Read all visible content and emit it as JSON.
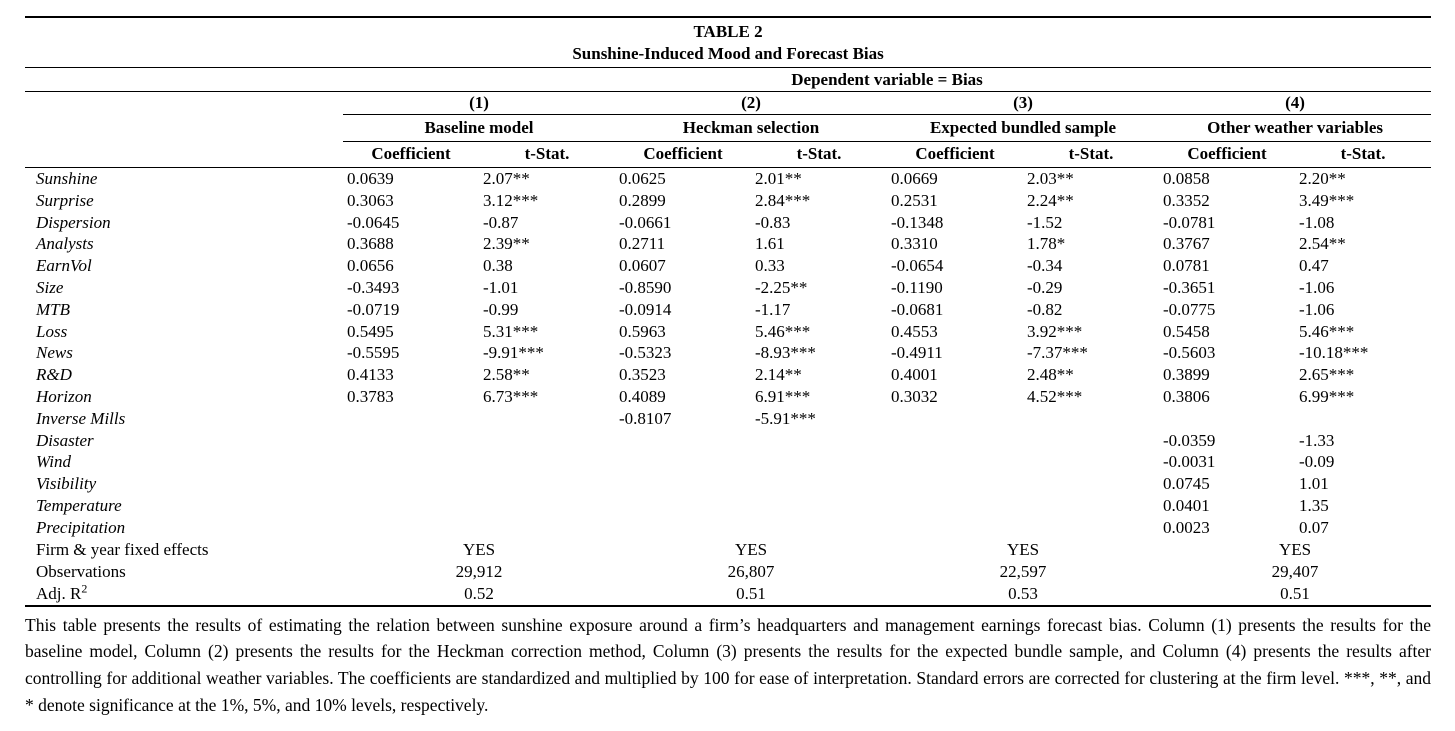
{
  "page": {
    "title": "TABLE 2",
    "subtitle": "Sunshine-Induced Mood and Forecast Bias",
    "dependent_variable_header": "Dependent variable = Bias",
    "column_groups": [
      {
        "number": "(1)",
        "name": "Baseline model"
      },
      {
        "number": "(2)",
        "name": "Heckman selection"
      },
      {
        "number": "(3)",
        "name": "Expected bundled sample"
      },
      {
        "number": "(4)",
        "name": "Other weather variables"
      }
    ],
    "subcolumn_headers": {
      "coefficient": "Coefficient",
      "t_stat": "t-Stat."
    },
    "variable_rows": [
      {
        "label": "Sunshine",
        "cells": [
          "0.0639",
          "2.07**",
          "0.0625",
          "2.01**",
          "0.0669",
          "2.03**",
          "0.0858",
          "2.20**"
        ]
      },
      {
        "label": "Surprise",
        "cells": [
          "0.3063",
          "3.12***",
          "0.2899",
          "2.84***",
          "0.2531",
          "2.24**",
          "0.3352",
          "3.49***"
        ]
      },
      {
        "label": "Dispersion",
        "cells": [
          "-0.0645",
          "-0.87",
          "-0.0661",
          "-0.83",
          "-0.1348",
          "-1.52",
          "-0.0781",
          "-1.08"
        ]
      },
      {
        "label": "Analysts",
        "cells": [
          "0.3688",
          "2.39**",
          "0.2711",
          "1.61",
          "0.3310",
          "1.78*",
          "0.3767",
          "2.54**"
        ]
      },
      {
        "label": "EarnVol",
        "cells": [
          "0.0656",
          "0.38",
          "0.0607",
          "0.33",
          "-0.0654",
          "-0.34",
          "0.0781",
          "0.47"
        ]
      },
      {
        "label": "Size",
        "cells": [
          "-0.3493",
          "-1.01",
          "-0.8590",
          "-2.25**",
          "-0.1190",
          "-0.29",
          "-0.3651",
          "-1.06"
        ]
      },
      {
        "label": "MTB",
        "cells": [
          "-0.0719",
          "-0.99",
          "-0.0914",
          "-1.17",
          "-0.0681",
          "-0.82",
          "-0.0775",
          "-1.06"
        ]
      },
      {
        "label": "Loss",
        "cells": [
          "0.5495",
          "5.31***",
          "0.5963",
          "5.46***",
          "0.4553",
          "3.92***",
          "0.5458",
          "5.46***"
        ]
      },
      {
        "label": "News",
        "cells": [
          "-0.5595",
          "-9.91***",
          "-0.5323",
          "-8.93***",
          "-0.4911",
          "-7.37***",
          "-0.5603",
          "-10.18***"
        ]
      },
      {
        "label": "R&D",
        "cells": [
          "0.4133",
          "2.58**",
          "0.3523",
          "2.14**",
          "0.4001",
          "2.48**",
          "0.3899",
          "2.65***"
        ]
      },
      {
        "label": "Horizon",
        "cells": [
          "0.3783",
          "6.73***",
          "0.4089",
          "6.91***",
          "0.3032",
          "4.52***",
          "0.3806",
          "6.99***"
        ]
      },
      {
        "label": "Inverse Mills",
        "cells": [
          "",
          "",
          "-0.8107",
          "-5.91***",
          "",
          "",
          "",
          ""
        ]
      },
      {
        "label": "Disaster",
        "cells": [
          "",
          "",
          "",
          "",
          "",
          "",
          "-0.0359",
          "-1.33"
        ]
      },
      {
        "label": "Wind",
        "cells": [
          "",
          "",
          "",
          "",
          "",
          "",
          "-0.0031",
          "-0.09"
        ]
      },
      {
        "label": "Visibility",
        "cells": [
          "",
          "",
          "",
          "",
          "",
          "",
          "0.0745",
          "1.01"
        ]
      },
      {
        "label": "Temperature",
        "cells": [
          "",
          "",
          "",
          "",
          "",
          "",
          "0.0401",
          "1.35"
        ]
      },
      {
        "label": "Precipitation",
        "cells": [
          "",
          "",
          "",
          "",
          "",
          "",
          "0.0023",
          "0.07"
        ]
      }
    ],
    "summary_rows": [
      {
        "label": "Firm & year fixed effects",
        "values": [
          "YES",
          "YES",
          "YES",
          "YES"
        ]
      },
      {
        "label": "Observations",
        "values": [
          "29,912",
          "26,807",
          "22,597",
          "29,407"
        ]
      },
      {
        "label": "Adj. R",
        "superscript": "2",
        "values": [
          "0.52",
          "0.51",
          "0.53",
          "0.51"
        ]
      }
    ],
    "footnote": "This table presents the results of estimating the relation between sunshine exposure around a firm’s headquarters and management earnings forecast bias. Column (1) presents the results for the baseline model, Column (2) presents the results for the Heckman correction method, Column (3) presents the results for the expected bundle sample, and Column (4) presents the results after controlling for additional weather variables. The coefficients are standardized and multiplied by 100 for ease of interpretation. Standard errors are corrected for clustering at the firm level. ***, **, and * denote significance at the 1%, 5%, and 10% levels, respectively."
  }
}
